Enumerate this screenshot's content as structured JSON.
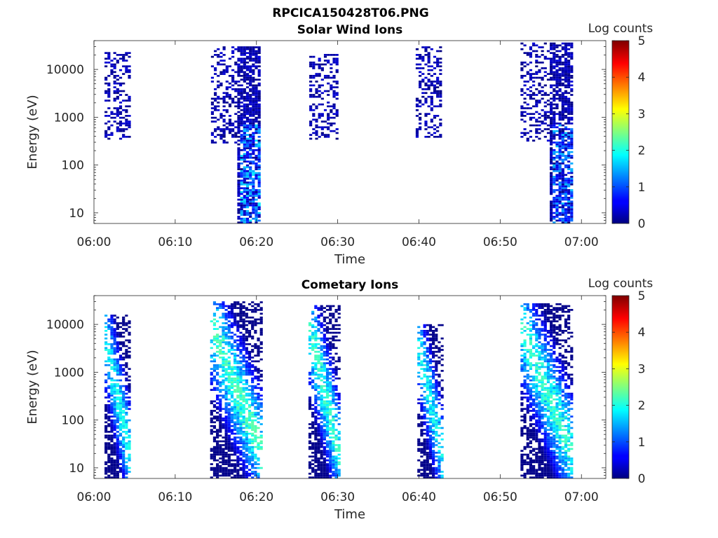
{
  "figure": {
    "file_title": "RPCICA150428T06.PNG"
  },
  "colormap": {
    "name": "jet"
  },
  "chart_data": [
    {
      "type": "heatmap",
      "title": "Solar Wind Ions",
      "xlabel": "Time",
      "ylabel": "Energy (eV)",
      "x_tick_labels": [
        "06:00",
        "06:10",
        "06:20",
        "06:30",
        "06:40",
        "06:50",
        "07:00"
      ],
      "x_ticks_min": [
        0,
        10,
        20,
        30,
        40,
        50,
        60
      ],
      "xlim_min": [
        0,
        63
      ],
      "y_tick_labels": [
        "10",
        "100",
        "1000",
        "10000"
      ],
      "y_ticks": [
        10,
        100,
        1000,
        10000
      ],
      "yscale": "log",
      "ylim": [
        6,
        40000
      ],
      "colorbar": {
        "label": "Log counts",
        "ticks": [
          0,
          1,
          2,
          3,
          4,
          5
        ],
        "range": [
          0,
          5
        ]
      },
      "scans": [
        {
          "t_start_min": 1.3,
          "t_end_min": 4.4,
          "e_min": 330,
          "e_max": 22000,
          "peak_log_counts": 0.6
        },
        {
          "t_start_min": 14.4,
          "t_end_min": 20.4,
          "e_min": 6,
          "e_max": 30000,
          "peak_log_counts": 1.8
        },
        {
          "t_start_min": 26.5,
          "t_end_min": 30.0,
          "e_min": 330,
          "e_max": 20000,
          "peak_log_counts": 0.6
        },
        {
          "t_start_min": 39.6,
          "t_end_min": 43.0,
          "e_min": 360,
          "e_max": 30000,
          "peak_log_counts": 0.6
        },
        {
          "t_start_min": 52.5,
          "t_end_min": 59.1,
          "e_min": 6,
          "e_max": 35000,
          "peak_log_counts": 1.6
        }
      ]
    },
    {
      "type": "heatmap",
      "title": "Cometary Ions",
      "xlabel": "Time",
      "ylabel": "Energy (eV)",
      "x_tick_labels": [
        "06:00",
        "06:10",
        "06:20",
        "06:30",
        "06:40",
        "06:50",
        "07:00"
      ],
      "x_ticks_min": [
        0,
        10,
        20,
        30,
        40,
        50,
        60
      ],
      "xlim_min": [
        0,
        63
      ],
      "y_tick_labels": [
        "10",
        "100",
        "1000",
        "10000"
      ],
      "y_ticks": [
        10,
        100,
        1000,
        10000
      ],
      "yscale": "log",
      "ylim": [
        6,
        40000
      ],
      "colorbar": {
        "label": "Log counts",
        "ticks": [
          0,
          1,
          2,
          3,
          4,
          5
        ],
        "range": [
          0,
          5
        ]
      },
      "scans": [
        {
          "t_start_min": 1.3,
          "t_end_min": 4.6,
          "e_min": 6,
          "e_max": 15000,
          "peak_log_counts": 2.0
        },
        {
          "t_start_min": 14.3,
          "t_end_min": 20.6,
          "e_min": 6,
          "e_max": 30000,
          "peak_log_counts": 2.3
        },
        {
          "t_start_min": 26.4,
          "t_end_min": 30.2,
          "e_min": 6,
          "e_max": 25000,
          "peak_log_counts": 2.2
        },
        {
          "t_start_min": 39.8,
          "t_end_min": 43.2,
          "e_min": 6,
          "e_max": 10000,
          "peak_log_counts": 2.0
        },
        {
          "t_start_min": 52.5,
          "t_end_min": 59.0,
          "e_min": 6,
          "e_max": 27000,
          "peak_log_counts": 2.2
        }
      ]
    }
  ]
}
